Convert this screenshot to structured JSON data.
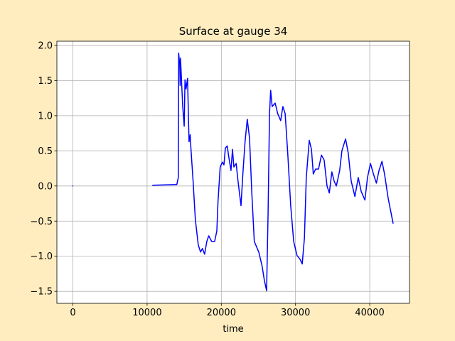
{
  "chart_data": {
    "type": "line",
    "title": "Surface at gauge 34",
    "xlabel": "time",
    "x": [
      0,
      null,
      10750,
      14000,
      14200,
      14250,
      14400,
      14450,
      14500,
      14800,
      15000,
      15100,
      15250,
      15450,
      15650,
      15800,
      15900,
      16200,
      16500,
      16900,
      17200,
      17450,
      17750,
      18050,
      18300,
      18700,
      19100,
      19400,
      19550,
      19850,
      20150,
      20350,
      20550,
      20800,
      21000,
      21300,
      21500,
      21700,
      22000,
      22250,
      22650,
      22900,
      23200,
      23500,
      23800,
      24100,
      24450,
      25050,
      25500,
      25800,
      26100,
      26300,
      26500,
      26650,
      26850,
      27250,
      27600,
      28000,
      28300,
      28600,
      28950,
      29350,
      29750,
      30200,
      30600,
      30900,
      31200,
      31450,
      31850,
      32150,
      32400,
      32700,
      33100,
      33500,
      33850,
      34250,
      34550,
      34900,
      35200,
      35500,
      35950,
      36250,
      36750,
      37100,
      37500,
      38000,
      38450,
      38850,
      39350,
      39700,
      40100,
      40500,
      40900,
      41250,
      41650,
      42000,
      42500,
      43150
    ],
    "series": [
      {
        "name": "surface",
        "color": "#0000ff",
        "values": [
          0,
          null,
          0.01,
          0.02,
          0.12,
          1.89,
          1.73,
          1.43,
          1.82,
          1.13,
          0.85,
          1.51,
          1.38,
          1.53,
          0.63,
          0.73,
          0.54,
          0.07,
          -0.48,
          -0.84,
          -0.94,
          -0.89,
          -0.97,
          -0.79,
          -0.71,
          -0.79,
          -0.79,
          -0.64,
          -0.23,
          0.27,
          0.34,
          0.3,
          0.54,
          0.57,
          0.42,
          0.22,
          0.52,
          0.27,
          0.32,
          0.07,
          -0.28,
          0.17,
          0.63,
          0.95,
          0.68,
          -0.08,
          -0.79,
          -0.94,
          -1.14,
          -1.34,
          -1.49,
          -0.38,
          1.03,
          1.36,
          1.13,
          1.18,
          1.03,
          0.93,
          1.13,
          1.03,
          0.47,
          -0.28,
          -0.79,
          -0.99,
          -1.04,
          -1.11,
          -0.74,
          0.12,
          0.65,
          0.52,
          0.17,
          0.24,
          0.24,
          0.44,
          0.37,
          0.0,
          -0.1,
          0.2,
          0.07,
          0.0,
          0.22,
          0.5,
          0.67,
          0.47,
          0.07,
          -0.15,
          0.12,
          -0.08,
          -0.2,
          0.12,
          0.32,
          0.17,
          0.04,
          0.22,
          0.35,
          0.17,
          -0.18,
          -0.53
        ]
      }
    ],
    "xlim": [
      -2160,
      45360
    ],
    "ylim": [
      -1.67,
      2.06
    ],
    "xticks": [
      0,
      10000,
      20000,
      30000,
      40000
    ],
    "yticks": [
      {
        "value": -1.5,
        "label": "−1.5"
      },
      {
        "value": -1.0,
        "label": "−1.0"
      },
      {
        "value": -0.5,
        "label": "−0.5"
      },
      {
        "value": 0,
        "label": "0.0"
      },
      0.5,
      {
        "value": 1.0,
        "label": "1.0"
      },
      1.5,
      {
        "value": 2.0,
        "label": "2.0"
      }
    ],
    "grid": true
  }
}
